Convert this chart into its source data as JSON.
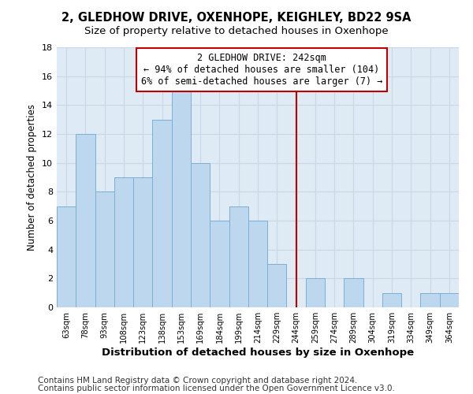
{
  "title": "2, GLEDHOW DRIVE, OXENHOPE, KEIGHLEY, BD22 9SA",
  "subtitle": "Size of property relative to detached houses in Oxenhope",
  "xlabel": "Distribution of detached houses by size in Oxenhope",
  "ylabel": "Number of detached properties",
  "bar_labels": [
    "63sqm",
    "78sqm",
    "93sqm",
    "108sqm",
    "123sqm",
    "138sqm",
    "153sqm",
    "169sqm",
    "184sqm",
    "199sqm",
    "214sqm",
    "229sqm",
    "244sqm",
    "259sqm",
    "274sqm",
    "289sqm",
    "304sqm",
    "319sqm",
    "334sqm",
    "349sqm",
    "364sqm"
  ],
  "bar_values": [
    7,
    12,
    8,
    9,
    9,
    13,
    15,
    10,
    6,
    7,
    6,
    3,
    0,
    2,
    0,
    2,
    0,
    1,
    0,
    1,
    1
  ],
  "bar_color": "#bdd7ee",
  "bar_edge_color": "#7bafd4",
  "annotation_line_x_label": "244sqm",
  "annotation_line_color": "#c00000",
  "annotation_box_text": "2 GLEDHOW DRIVE: 242sqm\n← 94% of detached houses are smaller (104)\n6% of semi-detached houses are larger (7) →",
  "annotation_box_color": "#c00000",
  "ylim": [
    0,
    18
  ],
  "yticks": [
    0,
    2,
    4,
    6,
    8,
    10,
    12,
    14,
    16,
    18
  ],
  "grid_color": "#c8d8e8",
  "bg_color": "#deeaf4",
  "footer_line1": "Contains HM Land Registry data © Crown copyright and database right 2024.",
  "footer_line2": "Contains public sector information licensed under the Open Government Licence v3.0.",
  "title_fontsize": 10.5,
  "subtitle_fontsize": 9.5,
  "xlabel_fontsize": 9.5,
  "ylabel_fontsize": 8.5,
  "annotation_fontsize": 8.5,
  "footer_fontsize": 7.5
}
